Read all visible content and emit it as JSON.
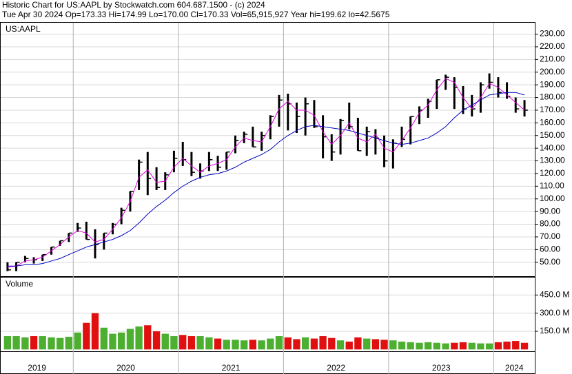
{
  "header": {
    "title": "Historic Chart for US:AAPL by Stockwatch.com 604.687.1500 - (c) 2024",
    "summary": "Tue Apr 30 2024   Op=173.33   Hi=174.99   Lo=170.00   Cl=170.33   Vol=65,915,927   Year hi=199.62   lo=42.5675"
  },
  "chart_data": [
    {
      "type": "ohlc",
      "label": "US:AAPL",
      "x": [
        2019.375,
        2019.458,
        2019.542,
        2019.625,
        2019.708,
        2019.792,
        2019.875,
        2019.958,
        2020.042,
        2020.125,
        2020.208,
        2020.292,
        2020.375,
        2020.458,
        2020.542,
        2020.625,
        2020.708,
        2020.792,
        2020.875,
        2020.958,
        2021.042,
        2021.125,
        2021.208,
        2021.292,
        2021.375,
        2021.458,
        2021.542,
        2021.625,
        2021.708,
        2021.792,
        2021.875,
        2021.958,
        2022.042,
        2022.125,
        2022.208,
        2022.292,
        2022.375,
        2022.458,
        2022.542,
        2022.625,
        2022.708,
        2022.792,
        2022.875,
        2022.958,
        2023.042,
        2023.125,
        2023.208,
        2023.292,
        2023.375,
        2023.458,
        2023.542,
        2023.625,
        2023.708,
        2023.792,
        2023.875,
        2023.958,
        2024.042,
        2024.125,
        2024.208,
        2024.292
      ],
      "high": [
        50,
        50,
        55,
        54,
        56,
        62,
        67,
        73,
        81,
        82,
        76,
        73,
        81,
        93,
        106,
        131,
        137,
        125,
        121,
        138,
        145,
        137,
        128,
        137,
        134,
        137,
        150,
        153,
        157,
        153,
        166,
        182,
        183,
        176,
        180,
        178,
        166,
        151,
        163,
        176,
        164,
        157,
        155,
        150,
        147,
        157,
        165,
        173,
        179,
        194,
        198,
        196,
        189,
        182,
        192,
        199,
        196,
        192,
        180,
        178
      ],
      "low": [
        43,
        43,
        50,
        49,
        51,
        56,
        63,
        66,
        74,
        68,
        53,
        60,
        72,
        80,
        90,
        107,
        103,
        107,
        107,
        121,
        126,
        118,
        116,
        122,
        122,
        123,
        136,
        144,
        141,
        138,
        147,
        157,
        154,
        152,
        150,
        156,
        132,
        130,
        135,
        155,
        138,
        134,
        135,
        125,
        124,
        141,
        143,
        159,
        164,
        171,
        186,
        171,
        167,
        165,
        168,
        187,
        180,
        179,
        168,
        165
      ],
      "close": [
        44,
        50,
        53,
        52,
        56,
        62,
        67,
        73,
        77,
        68,
        64,
        73,
        80,
        91,
        106,
        129,
        116,
        109,
        119,
        132,
        131,
        121,
        122,
        131,
        125,
        137,
        146,
        151,
        141,
        150,
        165,
        178,
        175,
        165,
        175,
        157,
        149,
        137,
        162,
        157,
        138,
        153,
        148,
        130,
        144,
        147,
        165,
        170,
        177,
        194,
        196,
        188,
        171,
        171,
        190,
        192,
        184,
        181,
        171,
        170
      ],
      "bar_color": "#000000",
      "series": [
        {
          "color": "#e000e0",
          "values": [
            46,
            47,
            51,
            52,
            54,
            59,
            64,
            70,
            75,
            73,
            66,
            68,
            76,
            85,
            98,
            117,
            123,
            113,
            114,
            125,
            132,
            126,
            121,
            126,
            128,
            131,
            141,
            148,
            146,
            145,
            157,
            171,
            177,
            170,
            170,
            166,
            153,
            143,
            150,
            160,
            148,
            145,
            151,
            140,
            137,
            146,
            156,
            168,
            174,
            186,
            195,
            192,
            180,
            171,
            180,
            191,
            188,
            182,
            176,
            170
          ]
        },
        {
          "color": "#0000c0",
          "values": [
            47,
            47,
            48,
            48,
            49,
            51,
            53,
            56,
            59,
            62,
            64,
            66,
            68,
            71,
            75,
            81,
            88,
            94,
            99,
            105,
            110,
            114,
            117,
            119,
            120,
            122,
            125,
            129,
            132,
            135,
            139,
            145,
            150,
            154,
            157,
            158,
            157,
            156,
            155,
            154,
            152,
            150,
            148,
            146,
            144,
            143,
            144,
            146,
            148,
            152,
            157,
            164,
            170,
            174,
            178,
            182,
            183,
            184,
            184,
            182
          ]
        }
      ],
      "xlim": [
        2019.31,
        2024.39
      ],
      "xticks": [
        2019,
        2020,
        2021,
        2022,
        2023,
        2024
      ],
      "ylim": [
        39,
        239
      ],
      "yticks": [
        {
          "value": 50,
          "label": "50.00"
        },
        {
          "value": 60,
          "label": "60.00"
        },
        {
          "value": 70,
          "label": "70.00"
        },
        {
          "value": 80,
          "label": "80.00"
        },
        {
          "value": 90,
          "label": "90.00"
        },
        {
          "value": 100,
          "label": "100.00"
        },
        {
          "value": 110,
          "label": "110.00"
        },
        {
          "value": 120,
          "label": "120.00"
        },
        {
          "value": 130,
          "label": "130.00"
        },
        {
          "value": 140,
          "label": "140.00"
        },
        {
          "value": 150,
          "label": "150.00"
        },
        {
          "value": 160,
          "label": "160.00"
        },
        {
          "value": 170,
          "label": "170.00"
        },
        {
          "value": 180,
          "label": "180.00"
        },
        {
          "value": 190,
          "label": "190.00"
        },
        {
          "value": 200,
          "label": "200.00"
        },
        {
          "value": 210,
          "label": "210.00"
        },
        {
          "value": 220,
          "label": "220.00"
        },
        {
          "value": 230,
          "label": "230.00"
        }
      ],
      "grid": true
    },
    {
      "type": "volume",
      "label": "Volume",
      "values": [
        110,
        110,
        100,
        110,
        110,
        100,
        95,
        105,
        140,
        220,
        300,
        180,
        130,
        140,
        170,
        190,
        200,
        150,
        130,
        110,
        120,
        110,
        110,
        100,
        90,
        80,
        80,
        75,
        80,
        75,
        90,
        110,
        100,
        85,
        100,
        90,
        110,
        95,
        75,
        65,
        100,
        90,
        85,
        80,
        75,
        65,
        60,
        55,
        60,
        55,
        50,
        55,
        60,
        55,
        50,
        50,
        60,
        65,
        70,
        55
      ],
      "up_color": "#4caf30",
      "down_color": "#e01010",
      "ylim": [
        -15,
        594
      ],
      "yticks": [
        {
          "value": 150,
          "label": "150.0 M"
        },
        {
          "value": 300,
          "label": "300.0 M"
        },
        {
          "value": 450,
          "label": "450.0 M"
        }
      ],
      "grid": true
    }
  ]
}
